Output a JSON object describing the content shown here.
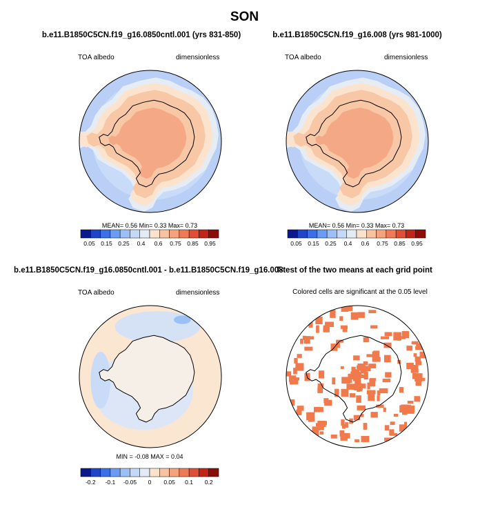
{
  "main_title": "SON",
  "panels": [
    {
      "id": "p1",
      "title": "b.e11.B1850C5CN.f19_g16.0850cntl.001 (yrs 831-850)",
      "left_label": "TOA albedo",
      "right_label": "dimensionless",
      "stats": "MEAN=  0.56  Min=  0.33  Max=  0.73"
    },
    {
      "id": "p2",
      "title": "b.e11.B1850C5CN.f19_g16.008 (yrs 981-1000)",
      "left_label": "TOA albedo",
      "right_label": "dimensionless",
      "stats": "MEAN=  0.56  Min=  0.33  Max=  0.73"
    },
    {
      "id": "p3",
      "title": "b.e11.B1850C5CN.f19_g16.0850cntl.001 - b.e11.B1850C5CN.f19_g16.008",
      "left_label": "TOA albedo",
      "right_label": "dimensionless",
      "stats": "MIN =  -0.08 MAX =  0.04"
    },
    {
      "id": "p4",
      "title": "T-test of the two means at each grid point",
      "center_label": "Colored cells are significant at the 0.05 level"
    }
  ],
  "colorbars": {
    "albedo": {
      "labels": [
        "0.05",
        "0.15",
        "0.25",
        "0.4",
        "0.6",
        "0.75",
        "0.85",
        "0.95"
      ],
      "colors": [
        "#0a1a8c",
        "#1f46c8",
        "#3a6fe6",
        "#6a9cf3",
        "#9cc0f6",
        "#c4d9f7",
        "#e3ebf5",
        "#fbe2cc",
        "#f8c3a1",
        "#f4a37c",
        "#ef7a55",
        "#e04e36",
        "#c12518",
        "#8a0d08"
      ]
    },
    "diff": {
      "labels": [
        "-0.2",
        "-0.1",
        "-0.05",
        "0",
        "0.05",
        "0.1",
        "0.2"
      ],
      "colors": [
        "#0a1a8c",
        "#1f46c8",
        "#3a6fe6",
        "#6a9cf3",
        "#9cc0f6",
        "#c4d9f7",
        "#e3ebf5",
        "#fbe2cc",
        "#f8c3a1",
        "#f4a37c",
        "#ef7a55",
        "#e04e36",
        "#c12518",
        "#8a0d08"
      ]
    }
  },
  "chart_data": [
    {
      "type": "heatmap",
      "title": "b.e11.B1850C5CN.f19_g16.0850cntl.001 (yrs 831-850)",
      "field": "TOA albedo",
      "units": "dimensionless",
      "mean": 0.56,
      "min": 0.33,
      "max": 0.73,
      "levels": [
        0.05,
        0.1,
        0.15,
        0.2,
        0.25,
        0.3,
        0.4,
        0.5,
        0.6,
        0.7,
        0.75,
        0.8,
        0.85,
        0.9,
        0.95
      ]
    },
    {
      "type": "heatmap",
      "title": "b.e11.B1850C5CN.f19_g16.008 (yrs 981-1000)",
      "field": "TOA albedo",
      "units": "dimensionless",
      "mean": 0.56,
      "min": 0.33,
      "max": 0.73,
      "levels": [
        0.05,
        0.1,
        0.15,
        0.2,
        0.25,
        0.3,
        0.4,
        0.5,
        0.6,
        0.7,
        0.75,
        0.8,
        0.85,
        0.9,
        0.95
      ]
    },
    {
      "type": "heatmap",
      "title": "b.e11.B1850C5CN.f19_g16.0850cntl.001 - b.e11.B1850C5CN.f19_g16.008",
      "field": "TOA albedo",
      "units": "dimensionless",
      "min": -0.08,
      "max": 0.04,
      "levels": [
        -0.2,
        -0.15,
        -0.1,
        -0.07,
        -0.05,
        -0.02,
        0,
        0.02,
        0.05,
        0.07,
        0.1,
        0.15,
        0.2
      ]
    },
    {
      "type": "heatmap",
      "title": "T-test of the two means at each grid point",
      "note": "Colored cells are significant at the 0.05 level",
      "significance_level": 0.05
    }
  ]
}
